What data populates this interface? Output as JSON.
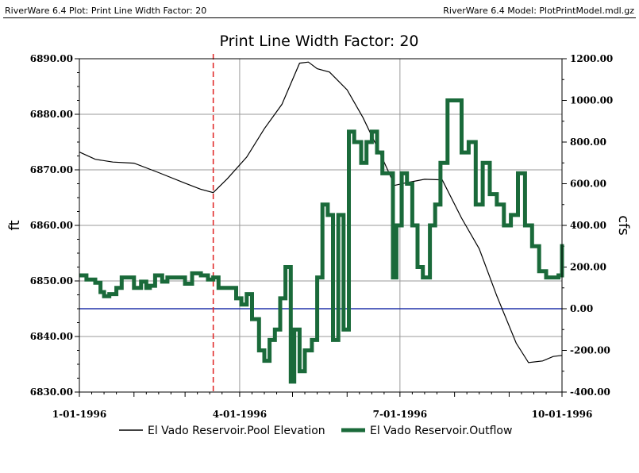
{
  "header": {
    "left": "RiverWare 6.4 Plot: Print Line Width Factor: 20",
    "right": "RiverWare 6.4 Model: PlotPrintModel.mdl.gz"
  },
  "chart_data": {
    "type": "line",
    "title": "Print Line Width Factor: 20",
    "ylabel_left": "ft",
    "ylabel_right": "cfs",
    "ylim_left": [
      6830,
      6890
    ],
    "ylim_right": [
      -400,
      1200
    ],
    "yticks_left": [
      "6830.00",
      "6840.00",
      "6850.00",
      "6860.00",
      "6870.00",
      "6880.00",
      "6890.00"
    ],
    "yticks_right": [
      "-400.00",
      "-200.00",
      "0.00",
      "200.00",
      "400.00",
      "600.00",
      "800.00",
      "1000.00",
      "1200.00"
    ],
    "xlim": [
      "1996-01-01",
      "1996-10-01"
    ],
    "xticks": [
      "1-01-1996",
      "4-01-1996",
      "7-01-1996",
      "10-01-1996"
    ],
    "grid": true,
    "legend_position": "bottom",
    "vertical_marker": "1996-03-17",
    "zero_line_cfs": 0,
    "series": [
      {
        "name": "El Vado Reservoir.Pool Elevation",
        "axis": "left",
        "color": "#000000",
        "x": [
          "1996-01-01",
          "1996-01-10",
          "1996-01-20",
          "1996-02-01",
          "1996-02-15",
          "1996-03-01",
          "1996-03-10",
          "1996-03-17",
          "1996-03-25",
          "1996-04-05",
          "1996-04-15",
          "1996-04-25",
          "1996-05-05",
          "1996-05-10",
          "1996-05-15",
          "1996-05-22",
          "1996-06-01",
          "1996-06-10",
          "1996-06-20",
          "1996-06-28",
          "1996-07-05",
          "1996-07-15",
          "1996-07-25",
          "1996-08-05",
          "1996-08-15",
          "1996-08-25",
          "1996-09-05",
          "1996-09-12",
          "1996-09-20",
          "1996-09-26",
          "1996-10-01"
        ],
        "y": [
          6873.2,
          6871.9,
          6871.4,
          6871.2,
          6869.5,
          6867.6,
          6866.5,
          6865.9,
          6868.4,
          6872.3,
          6877.4,
          6881.8,
          6889.2,
          6889.4,
          6888.2,
          6887.6,
          6884.4,
          6879.4,
          6872.8,
          6867.2,
          6867.7,
          6868.3,
          6868.2,
          6861.3,
          6855.8,
          6847.3,
          6838.8,
          6835.3,
          6835.6,
          6836.4,
          6836.6
        ]
      },
      {
        "name": "El Vado Reservoir.Outflow",
        "axis": "right",
        "color": "#1a6a3a",
        "x": [
          "1996-01-01",
          "1996-01-05",
          "1996-01-10",
          "1996-01-13",
          "1996-01-15",
          "1996-01-18",
          "1996-01-22",
          "1996-01-25",
          "1996-01-28",
          "1996-02-01",
          "1996-02-05",
          "1996-02-08",
          "1996-02-10",
          "1996-02-13",
          "1996-02-17",
          "1996-02-20",
          "1996-02-25",
          "1996-03-01",
          "1996-03-05",
          "1996-03-10",
          "1996-03-14",
          "1996-03-17",
          "1996-03-20",
          "1996-03-25",
          "1996-03-30",
          "1996-04-02",
          "1996-04-05",
          "1996-04-08",
          "1996-04-12",
          "1996-04-15",
          "1996-04-18",
          "1996-04-21",
          "1996-04-24",
          "1996-04-27",
          "1996-04-30",
          "1996-05-02",
          "1996-05-05",
          "1996-05-08",
          "1996-05-12",
          "1996-05-15",
          "1996-05-18",
          "1996-05-21",
          "1996-05-24",
          "1996-05-27",
          "1996-05-30",
          "1996-06-02",
          "1996-06-05",
          "1996-06-09",
          "1996-06-12",
          "1996-06-15",
          "1996-06-18",
          "1996-06-21",
          "1996-06-24",
          "1996-06-27",
          "1996-06-29",
          "1996-07-02",
          "1996-07-05",
          "1996-07-08",
          "1996-07-11",
          "1996-07-14",
          "1996-07-18",
          "1996-07-21",
          "1996-07-24",
          "1996-07-28",
          "1996-08-01",
          "1996-08-05",
          "1996-08-09",
          "1996-08-13",
          "1996-08-17",
          "1996-08-21",
          "1996-08-25",
          "1996-08-29",
          "1996-09-02",
          "1996-09-06",
          "1996-09-10",
          "1996-09-14",
          "1996-09-18",
          "1996-09-22",
          "1996-09-26",
          "1996-09-29",
          "1996-10-01"
        ],
        "y": [
          160,
          140,
          125,
          80,
          60,
          70,
          100,
          150,
          150,
          100,
          130,
          100,
          110,
          160,
          130,
          150,
          150,
          120,
          170,
          160,
          140,
          150,
          100,
          100,
          50,
          20,
          70,
          -50,
          -200,
          -250,
          -150,
          -100,
          50,
          200,
          -350,
          -100,
          -300,
          -200,
          -150,
          150,
          500,
          450,
          -150,
          450,
          -100,
          850,
          800,
          700,
          800,
          850,
          750,
          650,
          650,
          150,
          400,
          650,
          600,
          400,
          200,
          150,
          400,
          500,
          700,
          1000,
          1000,
          750,
          800,
          500,
          700,
          550,
          500,
          400,
          450,
          650,
          400,
          300,
          180,
          150,
          150,
          160,
          310
        ]
      }
    ]
  }
}
